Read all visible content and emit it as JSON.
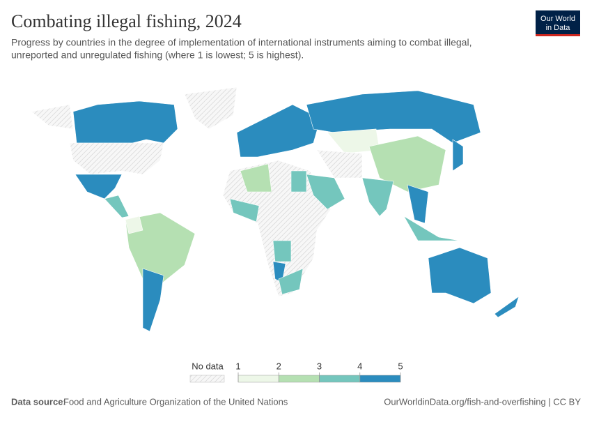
{
  "header": {
    "title": "Combating illegal fishing, 2024",
    "subtitle_lines": [
      "Progress by countries in the degree of implementation of international instruments aiming to combat illegal,",
      "unreported and unregulated fishing (where 1 is lowest; 5 is highest)."
    ],
    "logo_lines": [
      "Our World",
      "in Data"
    ]
  },
  "legend": {
    "no_data": "No data",
    "ticks": [
      1,
      2,
      3,
      4,
      5
    ],
    "colors": [
      "#edf7e8",
      "#b5e0b2",
      "#74c6bd",
      "#2b8cbe"
    ]
  },
  "footer": {
    "source_label": "Data source:",
    "source": "Food and Agriculture Organization of the United Nations",
    "link": "OurWorldinData.org/fish-and-overfishing | CC BY"
  }
}
